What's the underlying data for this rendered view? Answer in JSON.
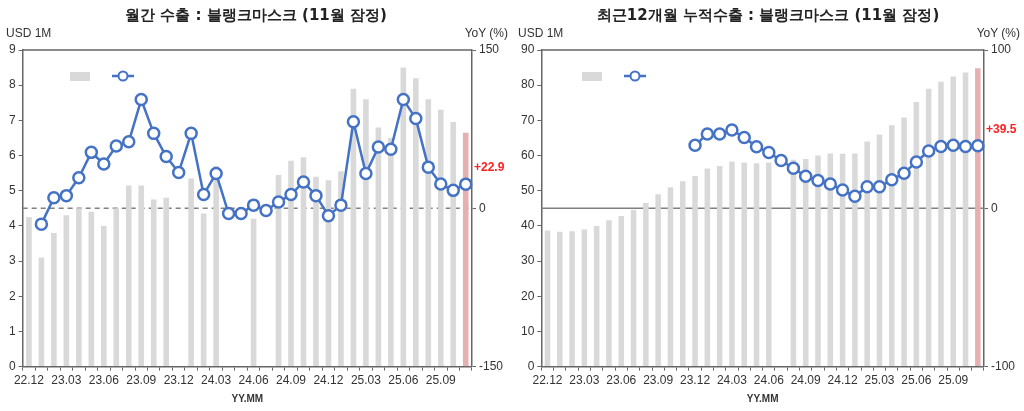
{
  "chart_data": [
    {
      "type": "bar",
      "title": "월간 수출 : 블랭크마스크 (11월 잠정)",
      "xlabel": "YY.MM",
      "ylabel": "USD 1M",
      "y2label": "YoY (%)",
      "categories": [
        "22.12",
        null,
        null,
        "23.03",
        null,
        null,
        "23.06",
        null,
        null,
        "23.09",
        null,
        null,
        "23.12",
        null,
        null,
        "24.03",
        null,
        null,
        "24.06",
        null,
        null,
        "24.09",
        null,
        null,
        "24.12",
        null,
        null,
        "25.03",
        null,
        null,
        "25.06",
        null,
        null,
        "25.09",
        null,
        null
      ],
      "series": [
        {
          "color": "#d9d9d9",
          "colors": [
            "#d9d9d9",
            "#d9d9d9",
            "#d9d9d9",
            "#d9d9d9",
            "#d9d9d9",
            "#d9d9d9",
            "#d9d9d9",
            "#d9d9d9",
            "#d9d9d9",
            "#d9d9d9",
            "#d9d9d9",
            "#d9d9d9",
            "#d9d9d9",
            "#d9d9d9",
            "#d9d9d9",
            "#d9d9d9",
            "#d9d9d9",
            "#d9d9d9",
            "#d9d9d9",
            "#d9d9d9",
            "#d9d9d9",
            "#d9d9d9",
            "#d9d9d9",
            "#d9d9d9",
            "#d9d9d9",
            "#d9d9d9",
            "#d9d9d9",
            "#d9d9d9",
            "#d9d9d9",
            "#d9d9d9",
            "#d9d9d9",
            "#d9d9d9",
            "#d9d9d9",
            "#d9d9d9",
            "#d9d9d9",
            "#e6b0b0"
          ],
          "values": [
            4.25,
            3.1,
            3.8,
            4.3,
            4.5,
            4.4,
            4.0,
            4.5,
            5.15,
            5.15,
            4.75,
            4.8,
            null,
            5.35,
            4.35,
            5.7,
            null,
            null,
            4.2,
            null,
            5.45,
            5.85,
            5.95,
            5.4,
            5.3,
            5.55,
            7.9,
            7.6,
            6.8,
            6.5,
            8.5,
            8.2,
            7.6,
            7.3,
            6.95,
            6.65
          ]
        },
        {
          "type": "line",
          "axis": "y2",
          "color": "#4472c4",
          "values": [
            null,
            -15,
            10,
            12,
            29,
            53,
            42,
            59,
            63,
            103,
            71,
            49,
            34,
            71,
            13,
            33,
            -5,
            -5,
            3,
            -2,
            6,
            13,
            25,
            12,
            -7,
            3,
            82,
            33,
            58,
            56,
            103,
            85,
            39,
            23,
            17,
            22.9
          ],
          "value_labels": [
            null,
            null,
            null,
            null,
            null,
            null,
            null,
            null,
            null,
            null,
            null,
            null,
            null,
            null,
            null,
            null,
            null,
            null,
            null,
            null,
            null,
            null,
            null,
            null,
            null,
            null,
            null,
            null,
            null,
            null,
            null,
            null,
            null,
            null,
            null,
            "+22.9"
          ]
        }
      ],
      "ylim": [
        0,
        9
      ],
      "yticks": [
        0,
        1,
        2,
        3,
        4,
        5,
        6,
        7,
        8,
        9
      ],
      "y2lim": [
        -150,
        150
      ],
      "y2ticks": [
        -150,
        0,
        150
      ],
      "ref_lines": [
        {
          "axis": "y2",
          "value": 0,
          "color": "#808080",
          "line_style": "dashed"
        }
      ],
      "marker": "circle",
      "grid": false
    },
    {
      "type": "bar",
      "title": "최근12개월 누적수출 : 블랭크마스크 (11월 잠정)",
      "xlabel": "YY.MM",
      "ylabel": "USD 1M",
      "y2label": "YoY (%)",
      "categories": [
        "22.12",
        null,
        null,
        "23.03",
        null,
        null,
        "23.06",
        null,
        null,
        "23.09",
        null,
        null,
        "23.12",
        null,
        null,
        "24.03",
        null,
        null,
        "24.06",
        null,
        null,
        "24.09",
        null,
        null,
        "24.12",
        null,
        null,
        "25.03",
        null,
        null,
        "25.06",
        null,
        null,
        "25.09",
        null,
        null
      ],
      "series": [
        {
          "color": "#d9d9d9",
          "colors": [
            "#d9d9d9",
            "#d9d9d9",
            "#d9d9d9",
            "#d9d9d9",
            "#d9d9d9",
            "#d9d9d9",
            "#d9d9d9",
            "#d9d9d9",
            "#d9d9d9",
            "#d9d9d9",
            "#d9d9d9",
            "#d9d9d9",
            "#d9d9d9",
            "#d9d9d9",
            "#d9d9d9",
            "#d9d9d9",
            "#d9d9d9",
            "#d9d9d9",
            "#d9d9d9",
            "#d9d9d9",
            "#d9d9d9",
            "#d9d9d9",
            "#d9d9d9",
            "#d9d9d9",
            "#d9d9d9",
            "#d9d9d9",
            "#d9d9d9",
            "#d9d9d9",
            "#d9d9d9",
            "#d9d9d9",
            "#d9d9d9",
            "#d9d9d9",
            "#d9d9d9",
            "#d9d9d9",
            "#d9d9d9",
            "#e6b0b0"
          ],
          "values": [
            38.7,
            38.3,
            38.5,
            39,
            40,
            41.6,
            42.8,
            44.5,
            46.5,
            49,
            51,
            52.7,
            54.2,
            56.3,
            57,
            58.3,
            58,
            57.8,
            58,
            null,
            58.8,
            59,
            60,
            60.6,
            60.5,
            60.6,
            64,
            66,
            68.6,
            70.8,
            75.2,
            79,
            81,
            82.5,
            83.6,
            84.8
          ]
        },
        {
          "type": "line",
          "axis": "y2",
          "color": "#4472c4",
          "values": [
            null,
            null,
            null,
            null,
            null,
            null,
            null,
            null,
            null,
            null,
            null,
            null,
            39.8,
            47,
            47,
            49.5,
            44.7,
            38.9,
            35.3,
            30.2,
            25.3,
            20.2,
            17.6,
            15.3,
            11.6,
            7.6,
            13.6,
            13.6,
            18,
            22.2,
            29.3,
            36.2,
            39.1,
            39.8,
            39.1,
            39.5
          ],
          "value_labels": [
            null,
            null,
            null,
            null,
            null,
            null,
            null,
            null,
            null,
            null,
            null,
            null,
            null,
            null,
            null,
            null,
            null,
            null,
            null,
            null,
            null,
            null,
            null,
            null,
            null,
            null,
            null,
            null,
            null,
            null,
            null,
            null,
            null,
            null,
            null,
            "+39.5"
          ]
        }
      ],
      "ylim": [
        0,
        90
      ],
      "yticks": [
        0,
        10,
        20,
        30,
        40,
        50,
        60,
        70,
        80,
        90
      ],
      "y2lim": [
        -100,
        100
      ],
      "y2ticks": [
        -100,
        0,
        100
      ],
      "ref_lines": [
        {
          "axis": "y2",
          "value": 0,
          "color": "#808080",
          "line_style": "solid"
        }
      ],
      "marker": "circle",
      "grid": false
    }
  ]
}
